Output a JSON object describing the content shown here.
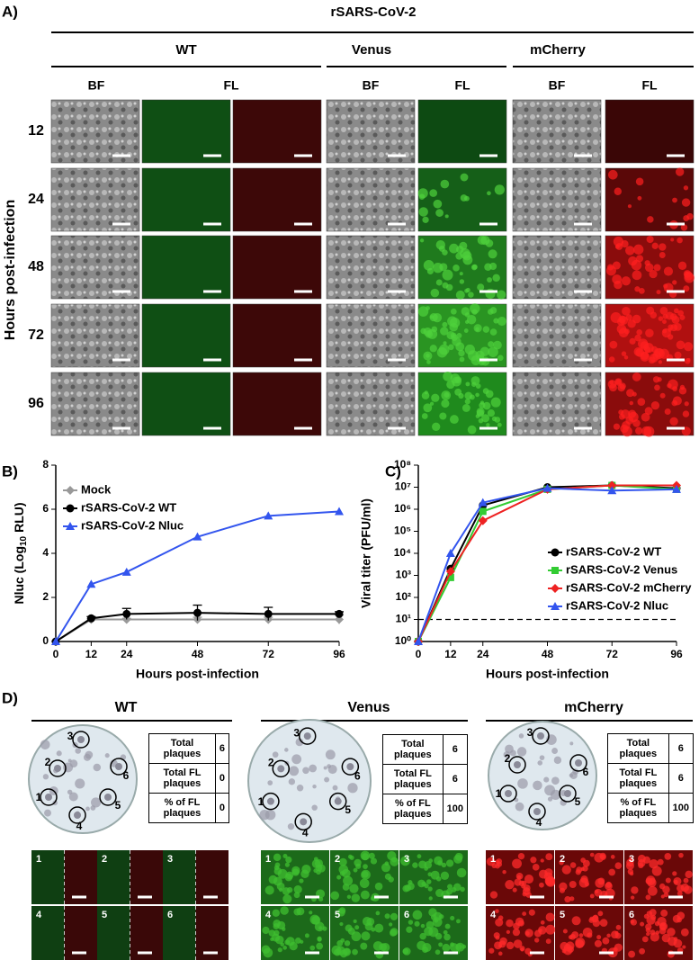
{
  "panel_a": {
    "label": "A)",
    "title": "rSARS-CoV-2",
    "y_label": "Hours post-infection",
    "groups": [
      {
        "name": "WT",
        "columns": [
          "BF",
          "FL"
        ]
      },
      {
        "name": "Venus",
        "columns": [
          "BF",
          "FL"
        ]
      },
      {
        "name": "mCherry",
        "columns": [
          "BF",
          "FL"
        ]
      }
    ],
    "row_labels": [
      "12",
      "24",
      "48",
      "72",
      "96"
    ]
  },
  "chart_data": [
    {
      "type": "line",
      "label": "B)",
      "x_label": "Hours post-infection",
      "y_label": "Nluc (Log",
      "y_label_sub": "10",
      "y_label_end": "RLU)",
      "x": [
        0,
        12,
        24,
        48,
        72,
        96
      ],
      "xlim": [
        0,
        96
      ],
      "xticks": [
        0,
        12,
        24,
        48,
        72,
        96
      ],
      "ylim": [
        0,
        8
      ],
      "yticks": [
        0,
        2,
        4,
        6,
        8
      ],
      "legend": "upper left",
      "series": [
        {
          "name": "Mock",
          "color": "#999999",
          "marker": "diamond",
          "values": [
            0,
            1,
            1,
            1,
            1,
            1
          ],
          "errors": [
            0,
            0.05,
            0.05,
            0.1,
            0.1,
            0.2
          ]
        },
        {
          "name": "rSARS-CoV-2 WT",
          "color": "#000000",
          "marker": "circle",
          "values": [
            0,
            1.05,
            1.25,
            1.3,
            1.25,
            1.25
          ],
          "errors": [
            0,
            0.08,
            0.25,
            0.35,
            0.3,
            0.1
          ]
        },
        {
          "name": "rSARS-CoV-2 Nluc",
          "color": "#3355ee",
          "marker": "triangle",
          "values": [
            0,
            2.6,
            3.15,
            4.75,
            5.7,
            5.9
          ]
        }
      ]
    },
    {
      "type": "line",
      "label": "C)",
      "x_label": "Hours post-infection",
      "y_label": "Viral titer (PFU/ml)",
      "log_y": true,
      "detection_limit": 10,
      "x": [
        0,
        12,
        24,
        48,
        72,
        96
      ],
      "xlim": [
        0,
        96
      ],
      "xticks": [
        0,
        12,
        24,
        48,
        72,
        96
      ],
      "ylim": [
        1,
        100000000
      ],
      "yticks": [
        {
          "value": 1,
          "label": "10⁰"
        },
        {
          "value": 10,
          "label": "10¹"
        },
        {
          "value": 100,
          "label": "10²"
        },
        {
          "value": 1000,
          "label": "10³"
        },
        {
          "value": 10000,
          "label": "10⁴"
        },
        {
          "value": 100000,
          "label": "10⁵"
        },
        {
          "value": 1000000,
          "label": "10⁶"
        },
        {
          "value": 10000000,
          "label": "10⁷"
        },
        {
          "value": 100000000,
          "label": "10⁸"
        }
      ],
      "legend": "center right",
      "series": [
        {
          "name": "rSARS-CoV-2 WT",
          "color": "#000000",
          "marker": "circle",
          "values": [
            1,
            2000,
            1500000,
            10000000,
            12000000,
            9000000
          ]
        },
        {
          "name": "rSARS-CoV-2 Venus",
          "color": "#33cc33",
          "marker": "square",
          "values": [
            1,
            800,
            800000,
            8000000,
            12000000,
            8000000
          ]
        },
        {
          "name": "rSARS-CoV-2 mCherry",
          "color": "#ee2222",
          "marker": "diamond",
          "values": [
            1,
            1500,
            300000,
            8000000,
            12000000,
            12000000
          ]
        },
        {
          "name": "rSARS-CoV-2 Nluc",
          "color": "#3355ee",
          "marker": "triangle",
          "values": [
            1,
            10000,
            2000000,
            9000000,
            7000000,
            8000000
          ]
        }
      ]
    }
  ],
  "panel_d": {
    "label": "D)",
    "groups": [
      {
        "name": "WT",
        "table": [
          [
            "Total plaques",
            6
          ],
          [
            "Total FL plaques",
            0
          ],
          [
            "% of FL plaques",
            0
          ]
        ],
        "plaques": [
          "1",
          "2",
          "3",
          "4",
          "5",
          "6"
        ],
        "images": [
          "1",
          "2",
          "3",
          "4",
          "5",
          "6"
        ]
      },
      {
        "name": "Venus",
        "table": [
          [
            "Total plaques",
            6
          ],
          [
            "Total FL plaques",
            6
          ],
          [
            "% of FL plaques",
            100
          ]
        ],
        "plaques": [
          "1",
          "2",
          "3",
          "4",
          "5",
          "6"
        ],
        "images": [
          "1",
          "2",
          "3",
          "4",
          "5",
          "6"
        ]
      },
      {
        "name": "mCherry",
        "table": [
          [
            "Total plaques",
            6
          ],
          [
            "Total FL plaques",
            6
          ],
          [
            "% of FL plaques",
            100
          ]
        ],
        "plaques": [
          "1",
          "2",
          "3",
          "4",
          "5",
          "6"
        ],
        "images": [
          "1",
          "2",
          "3",
          "4",
          "5",
          "6"
        ]
      }
    ]
  }
}
